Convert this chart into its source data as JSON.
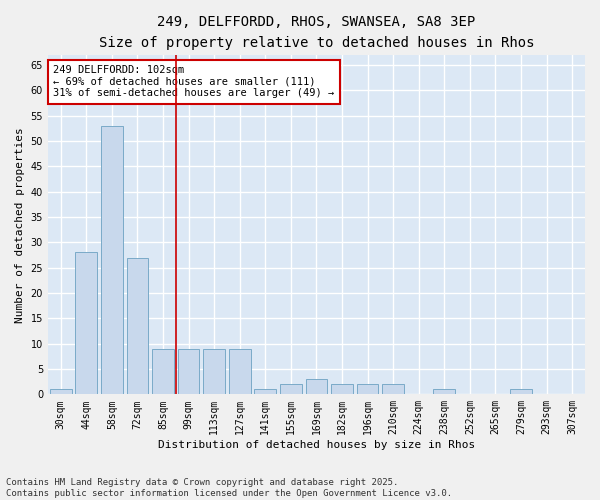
{
  "title_line1": "249, DELFFORDD, RHOS, SWANSEA, SA8 3EP",
  "title_line2": "Size of property relative to detached houses in Rhos",
  "xlabel": "Distribution of detached houses by size in Rhos",
  "ylabel": "Number of detached properties",
  "categories": [
    "30sqm",
    "44sqm",
    "58sqm",
    "72sqm",
    "85sqm",
    "99sqm",
    "113sqm",
    "127sqm",
    "141sqm",
    "155sqm",
    "169sqm",
    "182sqm",
    "196sqm",
    "210sqm",
    "224sqm",
    "238sqm",
    "252sqm",
    "265sqm",
    "279sqm",
    "293sqm",
    "307sqm"
  ],
  "values": [
    1,
    28,
    53,
    27,
    9,
    9,
    9,
    9,
    1,
    2,
    3,
    2,
    2,
    2,
    0,
    1,
    0,
    0,
    1,
    0,
    0
  ],
  "bar_color": "#c8d8ec",
  "bar_edge_color": "#7aaac8",
  "ylim": [
    0,
    67
  ],
  "yticks": [
    0,
    5,
    10,
    15,
    20,
    25,
    30,
    35,
    40,
    45,
    50,
    55,
    60,
    65
  ],
  "vline_x": 5.0,
  "vline_color": "#cc0000",
  "annotation_text": "249 DELFFORDD: 102sqm\n← 69% of detached houses are smaller (111)\n31% of semi-detached houses are larger (49) →",
  "annotation_box_color": "#ffffff",
  "annotation_box_edge_color": "#cc0000",
  "footnote": "Contains HM Land Registry data © Crown copyright and database right 2025.\nContains public sector information licensed under the Open Government Licence v3.0.",
  "plot_bg_color": "#dce8f5",
  "fig_bg_color": "#f0f0f0",
  "grid_color": "#ffffff",
  "title_fontsize": 10,
  "subtitle_fontsize": 9,
  "axis_label_fontsize": 8,
  "tick_fontsize": 7,
  "annotation_fontsize": 7.5,
  "footnote_fontsize": 6.5
}
